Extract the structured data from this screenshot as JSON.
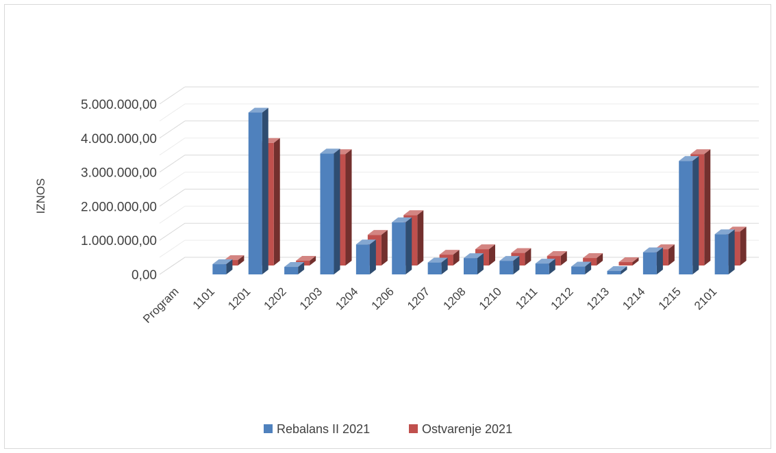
{
  "chart_data": {
    "type": "bar",
    "variant": "3d-clustered",
    "title": "",
    "xlabel": "",
    "ylabel": "IZNOS",
    "ylim": [
      0,
      5000000
    ],
    "yticks": [
      "0,00",
      "1.000.000,00",
      "2.000.000,00",
      "3.000.000,00",
      "4.000.000,00",
      "5.000.000,00"
    ],
    "grid": true,
    "legend_position": "bottom",
    "categories": [
      "Program",
      "1101",
      "1201",
      "1202",
      "1203",
      "1204",
      "1206",
      "1207",
      "1208",
      "1210",
      "1211",
      "1212",
      "1213",
      "1214",
      "1215",
      "2101"
    ],
    "series": [
      {
        "name": "Rebalans II 2021",
        "color": "#4f81bd",
        "values": [
          0,
          300000,
          4750000,
          220000,
          3550000,
          880000,
          1530000,
          350000,
          480000,
          400000,
          320000,
          230000,
          100000,
          650000,
          3330000,
          1180000
        ]
      },
      {
        "name": "Ostvarenje 2021",
        "color": "#c0504d",
        "values": [
          0,
          160000,
          3600000,
          140000,
          3270000,
          900000,
          1480000,
          320000,
          480000,
          370000,
          280000,
          220000,
          100000,
          480000,
          3270000,
          1000000
        ]
      }
    ]
  }
}
